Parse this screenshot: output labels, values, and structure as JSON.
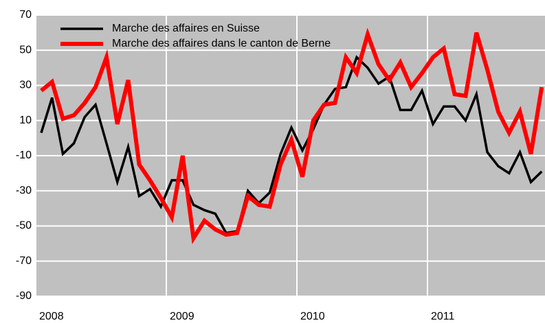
{
  "chart_data": {
    "type": "line",
    "x": [
      2008.042,
      2008.125,
      2008.208,
      2008.292,
      2008.375,
      2008.458,
      2008.542,
      2008.625,
      2008.708,
      2008.792,
      2008.875,
      2008.958,
      2009.042,
      2009.125,
      2009.208,
      2009.292,
      2009.375,
      2009.458,
      2009.542,
      2009.625,
      2009.708,
      2009.792,
      2009.875,
      2009.958,
      2010.042,
      2010.125,
      2010.208,
      2010.292,
      2010.375,
      2010.458,
      2010.542,
      2010.625,
      2010.708,
      2010.792,
      2010.875,
      2010.958,
      2011.042,
      2011.125,
      2011.208,
      2011.292,
      2011.375,
      2011.458,
      2011.542,
      2011.625,
      2011.708,
      2011.792,
      2011.875
    ],
    "series": [
      {
        "name": "Marche des affaires en Suisse",
        "color": "#000000",
        "values": [
          3,
          23,
          -9,
          -3,
          12,
          19,
          -3,
          -25,
          -5,
          -33,
          -29,
          -39,
          -24,
          -24,
          -38,
          -41,
          -43,
          -54,
          -53,
          -30,
          -37,
          -31,
          -9,
          6,
          -7,
          5,
          19,
          28,
          29,
          46,
          40,
          31,
          35,
          16,
          16,
          27,
          8,
          18,
          18,
          10,
          25,
          -8,
          -16,
          -20,
          -8,
          -25,
          -19
        ]
      },
      {
        "name": "Marche des affaires dans le canton de Berne",
        "color": "#ff0000",
        "values": [
          27,
          32,
          11,
          13,
          20,
          29,
          46,
          8,
          33,
          -15,
          -24,
          -34,
          -45,
          -10,
          -57,
          -47,
          -52,
          -55,
          -54,
          -33,
          -38,
          -39,
          -15,
          -1,
          -22,
          10,
          19,
          20,
          46,
          37,
          59,
          42,
          33,
          43,
          29,
          37,
          46,
          51,
          25,
          24,
          60,
          39,
          15,
          3,
          15,
          -9,
          29
        ]
      }
    ],
    "xlim": [
      2008,
      2011.9
    ],
    "xticks": [
      2008,
      2009,
      2010,
      2011
    ],
    "ylim": [
      -90,
      70
    ],
    "yticks": [
      -90,
      -70,
      -50,
      -30,
      -10,
      10,
      30,
      50,
      70
    ],
    "grid": true,
    "legend": "upper left"
  }
}
